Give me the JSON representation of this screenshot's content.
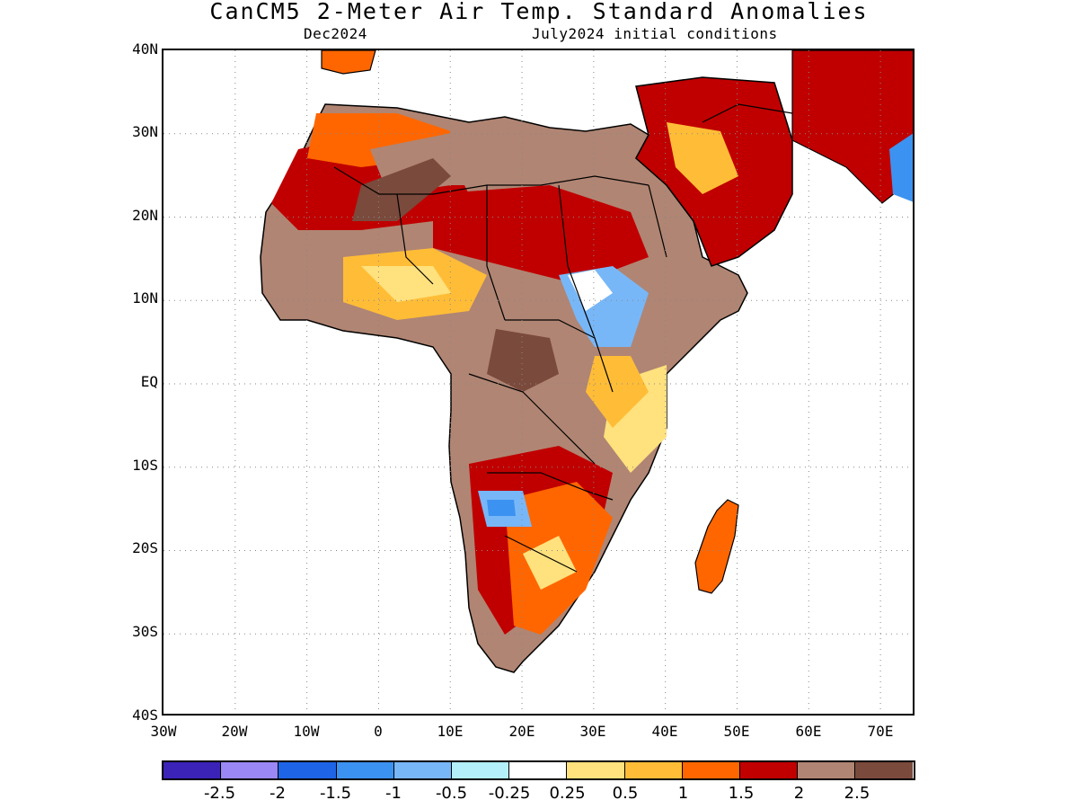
{
  "title": "CanCM5 2-Meter Air Temp. Standard Anomalies",
  "subtitle_left": "Dec2024",
  "subtitle_right": "July2024 initial conditions",
  "map": {
    "region": "Africa",
    "lon_range": [
      -30,
      75
    ],
    "lat_range": [
      -40,
      40
    ],
    "grid_lines": "dotted"
  },
  "lat_labels": [
    "40N",
    "30N",
    "20N",
    "10N",
    "EQ",
    "10S",
    "20S",
    "30S",
    "40S"
  ],
  "lon_labels": [
    "30W",
    "20W",
    "10W",
    "0",
    "10E",
    "20E",
    "30E",
    "40E",
    "50E",
    "60E",
    "70E"
  ],
  "colorbar": {
    "colors": [
      "#3b23b8",
      "#9b87f5",
      "#1e64e6",
      "#3c92f0",
      "#78b7f7",
      "#b4f0fa",
      "#ffffff",
      "#ffe17d",
      "#ffbd37",
      "#ff6600",
      "#c00000",
      "#b08573",
      "#7a4a3c"
    ],
    "labels": [
      "-2.5",
      "-2",
      "-1.5",
      "-1",
      "-0.5",
      "-0.25",
      "0.25",
      "0.5",
      "1",
      "1.5",
      "2",
      "2.5"
    ]
  }
}
